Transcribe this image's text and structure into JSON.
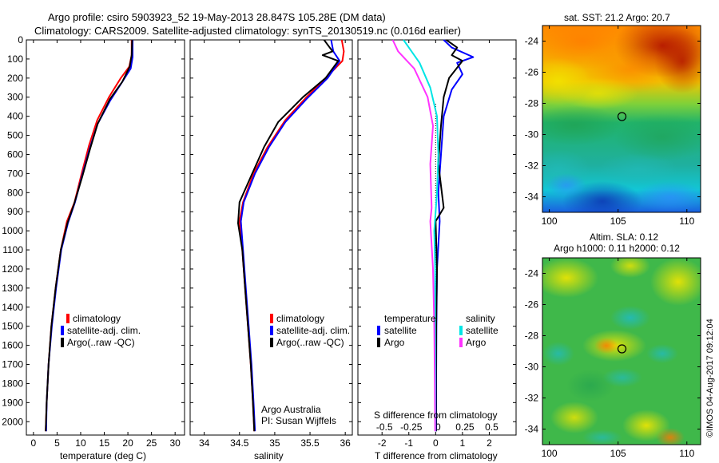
{
  "header": {
    "title_line1": "Argo profile: csiro 5903923_52 19-May-2013 28.847S 105.28E (DM data)",
    "title_line2": "Climatology: CARS2009. Satellite-adjusted climatology: synTS_20130519.nc (0.016d earlier)"
  },
  "colors": {
    "climatology": "#ff0000",
    "satellite": "#0000ff",
    "argo": "#000000",
    "satellite_salinity": "#00e5e5",
    "argo_salinity": "#ff33ff"
  },
  "depth_axis": {
    "ticks": [
      0,
      100,
      200,
      300,
      400,
      500,
      600,
      700,
      800,
      900,
      1000,
      1100,
      1200,
      1300,
      1400,
      1500,
      1600,
      1700,
      1800,
      1900,
      2000
    ],
    "range": [
      0,
      2070
    ]
  },
  "chart_data": [
    {
      "type": "line",
      "xlabel": "temperature (deg C)",
      "xlim": [
        -1.5,
        32
      ],
      "xticks": [
        0,
        5,
        10,
        15,
        20,
        25,
        30
      ],
      "ylim": [
        0,
        2070
      ],
      "legend": [
        "climatology",
        "satellite-adj. clim.",
        "Argo(..raw -QC)"
      ],
      "series": [
        {
          "name": "climatology",
          "points": [
            [
              20.8,
              0
            ],
            [
              20.8,
              80
            ],
            [
              20.3,
              140
            ],
            [
              18.5,
              200
            ],
            [
              16.0,
              300
            ],
            [
              13.5,
              420
            ],
            [
              11.8,
              550
            ],
            [
              10.2,
              700
            ],
            [
              8.7,
              850
            ],
            [
              7.1,
              950
            ],
            [
              5.8,
              1100
            ],
            [
              4.7,
              1300
            ],
            [
              3.8,
              1500
            ],
            [
              3.2,
              1700
            ],
            [
              2.8,
              1900
            ],
            [
              2.6,
              2050
            ]
          ]
        },
        {
          "name": "satellite-adj. clim.",
          "points": [
            [
              21.0,
              0
            ],
            [
              21.0,
              90
            ],
            [
              20.6,
              150
            ],
            [
              18.8,
              220
            ],
            [
              16.2,
              320
            ],
            [
              13.6,
              440
            ],
            [
              11.9,
              570
            ],
            [
              10.2,
              720
            ],
            [
              8.8,
              850
            ],
            [
              7.3,
              960
            ],
            [
              5.9,
              1100
            ],
            [
              4.8,
              1300
            ],
            [
              3.9,
              1500
            ],
            [
              3.2,
              1700
            ],
            [
              2.8,
              1900
            ],
            [
              2.7,
              2050
            ]
          ]
        },
        {
          "name": "Argo(..raw -QC)",
          "points": [
            [
              20.9,
              0
            ],
            [
              20.8,
              80
            ],
            [
              20.4,
              140
            ],
            [
              18.8,
              220
            ],
            [
              16.2,
              310
            ],
            [
              13.6,
              440
            ],
            [
              12.0,
              570
            ],
            [
              10.3,
              720
            ],
            [
              8.6,
              860
            ],
            [
              7.2,
              960
            ],
            [
              5.8,
              1100
            ],
            [
              4.7,
              1300
            ],
            [
              3.8,
              1500
            ],
            [
              3.2,
              1700
            ],
            [
              2.8,
              1900
            ],
            [
              2.6,
              2050
            ]
          ]
        }
      ]
    },
    {
      "type": "line",
      "xlabel": "salinity",
      "xlim": [
        33.8,
        36.1
      ],
      "xticks": [
        34,
        34.5,
        35,
        35.5,
        36
      ],
      "ylim": [
        0,
        2070
      ],
      "legend": [
        "climatology",
        "satellite-adj. clim.",
        "Argo(..raw -QC)"
      ],
      "annotation": [
        "Argo Australia",
        "PI: Susan Wijffels"
      ],
      "series": [
        {
          "name": "climatology",
          "points": [
            [
              35.95,
              0
            ],
            [
              35.98,
              60
            ],
            [
              35.96,
              110
            ],
            [
              35.75,
              190
            ],
            [
              35.45,
              300
            ],
            [
              35.15,
              420
            ],
            [
              34.9,
              560
            ],
            [
              34.7,
              700
            ],
            [
              34.55,
              850
            ],
            [
              34.5,
              950
            ],
            [
              34.54,
              1100
            ],
            [
              34.58,
              1300
            ],
            [
              34.62,
              1500
            ],
            [
              34.66,
              1700
            ],
            [
              34.69,
              1900
            ],
            [
              34.71,
              2050
            ]
          ]
        },
        {
          "name": "satellite-adj. clim.",
          "points": [
            [
              35.8,
              0
            ],
            [
              35.83,
              60
            ],
            [
              35.92,
              110
            ],
            [
              35.75,
              200
            ],
            [
              35.45,
              310
            ],
            [
              35.15,
              430
            ],
            [
              34.92,
              560
            ],
            [
              34.72,
              700
            ],
            [
              34.56,
              850
            ],
            [
              34.52,
              950
            ],
            [
              34.55,
              1100
            ],
            [
              34.59,
              1300
            ],
            [
              34.63,
              1500
            ],
            [
              34.67,
              1700
            ],
            [
              34.7,
              1900
            ],
            [
              34.72,
              2050
            ]
          ]
        },
        {
          "name": "Argo(..raw -QC)",
          "points": [
            [
              35.7,
              0
            ],
            [
              35.74,
              20
            ],
            [
              35.82,
              60
            ],
            [
              35.68,
              80
            ],
            [
              35.9,
              110
            ],
            [
              35.72,
              200
            ],
            [
              35.4,
              300
            ],
            [
              35.05,
              430
            ],
            [
              34.85,
              560
            ],
            [
              34.68,
              700
            ],
            [
              34.5,
              850
            ],
            [
              34.48,
              960
            ],
            [
              34.54,
              1100
            ],
            [
              34.58,
              1300
            ],
            [
              34.62,
              1500
            ],
            [
              34.66,
              1700
            ],
            [
              34.69,
              1900
            ],
            [
              34.71,
              2050
            ]
          ]
        }
      ]
    },
    {
      "type": "line",
      "xlabel": "T difference from climatology",
      "xlabel_top": "S difference from climatology",
      "xlim": [
        -2.9,
        3.0
      ],
      "xticks": [
        -2,
        -1,
        0,
        1,
        2
      ],
      "xticks_salinity": [
        "-0.5",
        "-0.25",
        "0",
        "0.25",
        "0.5"
      ],
      "ylim": [
        0,
        2070
      ],
      "legend_headings": [
        "temperature",
        "salinity"
      ],
      "legend": [
        "satellite",
        "Argo",
        "satellite",
        "Argo"
      ],
      "series": [
        {
          "name": "satellite",
          "points": [
            [
              0.3,
              0
            ],
            [
              0.6,
              40
            ],
            [
              1.4,
              90
            ],
            [
              0.8,
              120
            ],
            [
              1.0,
              180
            ],
            [
              0.6,
              260
            ],
            [
              0.3,
              400
            ],
            [
              0.2,
              600
            ],
            [
              0.1,
              800
            ],
            [
              0.15,
              950
            ],
            [
              0.05,
              1200
            ],
            [
              0.03,
              1500
            ],
            [
              0.02,
              1800
            ],
            [
              0.02,
              2050
            ]
          ]
        },
        {
          "name": "Argo",
          "points": [
            [
              0.4,
              0
            ],
            [
              0.8,
              40
            ],
            [
              0.6,
              80
            ],
            [
              1.0,
              110
            ],
            [
              0.5,
              200
            ],
            [
              0.3,
              300
            ],
            [
              0.2,
              450
            ],
            [
              0.1,
              650
            ],
            [
              0.3,
              880
            ],
            [
              0.0,
              950
            ],
            [
              0.05,
              1200
            ],
            [
              0.02,
              1500
            ],
            [
              0.01,
              1800
            ],
            [
              0.01,
              2050
            ]
          ]
        },
        {
          "name": "satellite",
          "points": [
            [
              -1.2,
              0
            ],
            [
              -0.9,
              60
            ],
            [
              -0.6,
              120
            ],
            [
              -0.2,
              250
            ],
            [
              0.05,
              400
            ],
            [
              0.1,
              600
            ],
            [
              0.05,
              800
            ],
            [
              -0.05,
              1000
            ],
            [
              -0.02,
              1200
            ],
            [
              -0.02,
              1500
            ],
            [
              -0.01,
              1800
            ],
            [
              -0.01,
              2050
            ]
          ]
        },
        {
          "name": "Argo",
          "points": [
            [
              -1.6,
              0
            ],
            [
              -1.4,
              60
            ],
            [
              -0.8,
              150
            ],
            [
              -0.3,
              300
            ],
            [
              -0.1,
              450
            ],
            [
              -0.2,
              650
            ],
            [
              -0.15,
              880
            ],
            [
              -0.2,
              950
            ],
            [
              -0.1,
              1200
            ],
            [
              -0.05,
              1500
            ],
            [
              -0.03,
              1800
            ],
            [
              -0.02,
              2050
            ]
          ]
        }
      ]
    },
    {
      "type": "heatmap",
      "title": "sat. SST: 21.2 Argo: 20.7",
      "xticks": [
        100,
        105,
        110
      ],
      "yticks": [
        -24,
        -26,
        -28,
        -30,
        -32,
        -34
      ],
      "xlim": [
        99.5,
        111
      ],
      "ylim": [
        -35,
        -23
      ],
      "marker": [
        105.28,
        -28.847
      ]
    },
    {
      "type": "heatmap",
      "title_line1": "Altim. SLA: 0.12",
      "title_line2": "Argo h1000: 0.11 h2000: 0.12",
      "xticks": [
        100,
        105,
        110
      ],
      "yticks": [
        -24,
        -26,
        -28,
        -30,
        -32,
        -34
      ],
      "xlim": [
        99.5,
        111
      ],
      "ylim": [
        -35,
        -23
      ],
      "marker": [
        105.28,
        -28.847
      ]
    }
  ],
  "footer": {
    "stamp": "©IMOS 04-Aug-2017 09:12:04"
  }
}
